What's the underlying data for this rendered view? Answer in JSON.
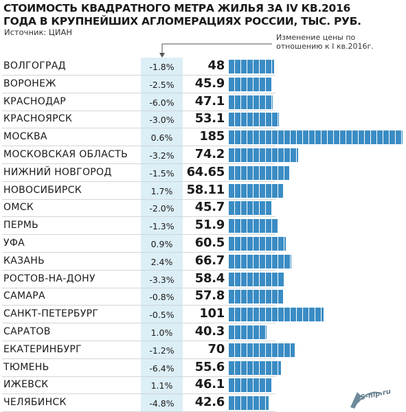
{
  "header": {
    "title_line1": "СТОИМОСТЬ КВАДРАТНОГО МЕТРА ЖИЛЬЯ ЗА IV КВ.2016",
    "title_line2": "ГОДА В КРУПНЕЙШИХ АГЛОМЕРАЦИЯХ РОССИИ, ТЫС. РУБ.",
    "source": "Источник: ЦИАН",
    "change_note": "Изменение цены по отношению к I кв.2016г."
  },
  "watermark": {
    "text": "S-nip.ru",
    "logo": "IS"
  },
  "colors": {
    "bar": "#3a8cc4",
    "change_column": "#dceef6",
    "text": "#1a1a1a"
  },
  "chart_data": {
    "type": "bar",
    "orientation": "horizontal",
    "title": "СТОИМОСТЬ КВАДРАТНОГО МЕТРА ЖИЛЬЯ ЗА IV КВ.2016 ГОДА В КРУПНЕЙШИХ АГЛОМЕРАЦИЯХ РОССИИ, ТЫС. РУБ.",
    "categories": [
      "ВОЛГОГРАД",
      "ВОРОНЕЖ",
      "КРАСНОДАР",
      "КРАСНОЯРСК",
      "МОСКВА",
      "МОСКОВСКАЯ ОБЛАСТЬ",
      "НИЖНИЙ НОВГОРОД",
      "НОВОСИБИРСК",
      "ОМСК",
      "ПЕРМЬ",
      "УФА",
      "КАЗАНЬ",
      "РОСТОВ-НА-ДОНУ",
      "САМАРА",
      "САНКТ-ПЕТЕРБУРГ",
      "САРАТОВ",
      "ЕКАТЕРИНБУРГ",
      "ТЮМЕНЬ",
      "ИЖЕВСК",
      "ЧЕЛЯБИНСК"
    ],
    "values": [
      "48",
      "45.9",
      "47.1",
      "53.1",
      "185",
      "74.2",
      "64.65",
      "58.11",
      "45.7",
      "51.9",
      "60.5",
      "66.7",
      "58.4",
      "57.8",
      "101",
      "40.3",
      "70",
      "55.6",
      "46.1",
      "42.6"
    ],
    "changes": [
      "-1.8%",
      "-2.5%",
      "-6.0%",
      "-3.0%",
      "0.6%",
      "-3.2%",
      "-1.5%",
      "1.7%",
      "-2.0%",
      "-1.3%",
      "0.9%",
      "2.4%",
      "-3.3%",
      "-0.8%",
      "-0.5%",
      "1.0%",
      "-1.2%",
      "-6.4%",
      "1.1%",
      "-4.8%"
    ],
    "xlim": [
      0,
      185
    ],
    "grid": false,
    "legend": "none"
  }
}
